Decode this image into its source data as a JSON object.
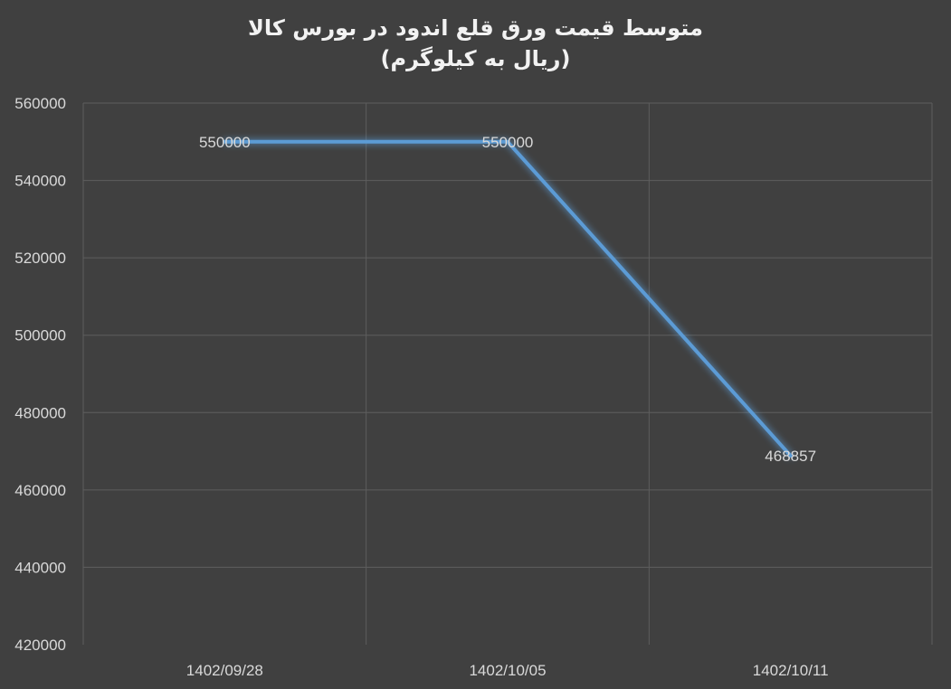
{
  "chart_data": {
    "type": "line",
    "title": "متوسط قیمت ورق قلع اندود در بورس کالا",
    "subtitle": "(ریال به کیلوگرم)",
    "categories": [
      "1402/09/28",
      "1402/10/05",
      "1402/10/11"
    ],
    "series": [
      {
        "values": [
          550000,
          550000,
          468857
        ],
        "data_labels": [
          "550000",
          "550000",
          "468857"
        ],
        "color": "#5b9bd5"
      }
    ],
    "ylim": [
      420000,
      560000
    ],
    "yticks": [
      560000,
      540000,
      520000,
      500000,
      480000,
      460000,
      440000,
      420000
    ],
    "ytick_labels": [
      "560000",
      "540000",
      "520000",
      "500000",
      "480000",
      "460000",
      "440000",
      "420000"
    ],
    "grid": true,
    "legend": "none",
    "background": "#404040"
  }
}
